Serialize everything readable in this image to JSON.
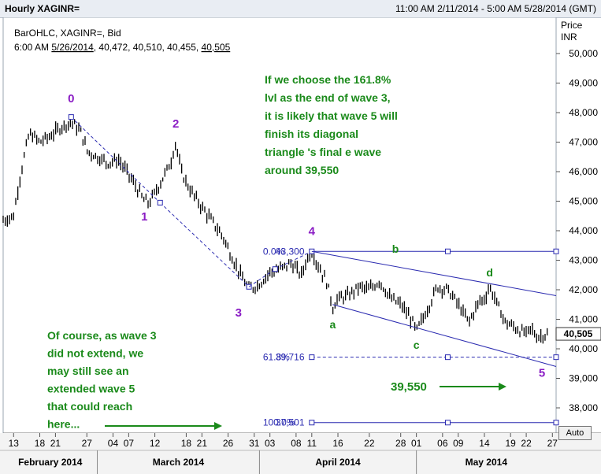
{
  "window": {
    "title": "Hourly XAGINR=",
    "range": "11:00 AM 2/11/2014 - 5:00 AM 5/28/2014 (GMT)"
  },
  "legend": {
    "line1": "BarOHLC, XAGINR=, Bid",
    "time": "6:00 AM",
    "date": "5/26/2014",
    "open": "40,472",
    "high": "40,510",
    "low": "40,455",
    "close": "40,505"
  },
  "axis": {
    "y_title_1": "Price",
    "y_title_2": "INR",
    "auto_label": "Auto",
    "current_price_label": "40,505",
    "current_price": 40505
  },
  "colors": {
    "wave_label": "#8a1cc4",
    "abc_label": "#1a8a1a",
    "annotation_text": "#1a8a1a",
    "fib_line": "#2a2ab0",
    "price_bars": "#000000",
    "underline": "#8a1cc4"
  },
  "annotations": {
    "top": [
      "If we choose the 161.8%",
      "lvl as the end of wave 3,",
      "it is likely that wave 5 will",
      "finish its diagonal",
      "triangle 's final e wave",
      "around 39,550"
    ],
    "bottom": [
      "Of course, as wave 3",
      "did not extend, we",
      "may still see an",
      "extended wave 5",
      "that could reach",
      "here..."
    ],
    "target": "39,550"
  },
  "chart_data": {
    "type": "ohlc",
    "title": "Hourly XAGINR=",
    "ylabel": "Price INR",
    "ylim": [
      36800,
      50500
    ],
    "y_ticks": [
      {
        "v": 50000,
        "label": "50,000"
      },
      {
        "v": 49000,
        "label": "49,000"
      },
      {
        "v": 48000,
        "label": "48,000"
      },
      {
        "v": 47000,
        "label": "47,000"
      },
      {
        "v": 46000,
        "label": "46,000"
      },
      {
        "v": 45000,
        "label": "45,000"
      },
      {
        "v": 44000,
        "label": "44,000"
      },
      {
        "v": 43000,
        "label": "43,000"
      },
      {
        "v": 42000,
        "label": "42,000"
      },
      {
        "v": 41000,
        "label": "41,000"
      },
      {
        "v": 40000,
        "label": "40,000"
      },
      {
        "v": 39000,
        "label": "39,000"
      },
      {
        "v": 38000,
        "label": "38,000"
      }
    ],
    "x_ticks": [
      {
        "date": "2014-02-13",
        "label": "13"
      },
      {
        "date": "2014-02-18",
        "label": "18"
      },
      {
        "date": "2014-02-21",
        "label": "21"
      },
      {
        "date": "2014-02-27",
        "label": "27"
      },
      {
        "date": "2014-03-04",
        "label": "04"
      },
      {
        "date": "2014-03-07",
        "label": "07"
      },
      {
        "date": "2014-03-12",
        "label": "12"
      },
      {
        "date": "2014-03-18",
        "label": "18"
      },
      {
        "date": "2014-03-21",
        "label": "21"
      },
      {
        "date": "2014-03-26",
        "label": "26"
      },
      {
        "date": "2014-03-31",
        "label": "31"
      },
      {
        "date": "2014-04-03",
        "label": "03"
      },
      {
        "date": "2014-04-08",
        "label": "08"
      },
      {
        "date": "2014-04-11",
        "label": "11"
      },
      {
        "date": "2014-04-16",
        "label": "16"
      },
      {
        "date": "2014-04-22",
        "label": "22"
      },
      {
        "date": "2014-04-28",
        "label": "28"
      },
      {
        "date": "2014-05-01",
        "label": "01"
      },
      {
        "date": "2014-05-06",
        "label": "06"
      },
      {
        "date": "2014-05-09",
        "label": "09"
      },
      {
        "date": "2014-05-14",
        "label": "14"
      },
      {
        "date": "2014-05-19",
        "label": "19"
      },
      {
        "date": "2014-05-22",
        "label": "22"
      },
      {
        "date": "2014-05-27",
        "label": "27"
      }
    ],
    "months": [
      {
        "label": "February 2014",
        "start": "2014-02-11",
        "end": "2014-03-01"
      },
      {
        "label": "March 2014",
        "start": "2014-03-01",
        "end": "2014-04-01"
      },
      {
        "label": "April 2014",
        "start": "2014-04-01",
        "end": "2014-05-01"
      },
      {
        "label": "May 2014",
        "start": "2014-05-01",
        "end": "2014-05-28"
      }
    ],
    "price_path": [
      [
        "2014-02-11",
        44350
      ],
      [
        "2014-02-13",
        44500
      ],
      [
        "2014-02-14",
        45600
      ],
      [
        "2014-02-15",
        46500
      ],
      [
        "2014-02-16",
        47300
      ],
      [
        "2014-02-18",
        47000
      ],
      [
        "2014-02-20",
        47200
      ],
      [
        "2014-02-22",
        47500
      ],
      [
        "2014-02-24",
        47700
      ],
      [
        "2014-02-25",
        47500
      ],
      [
        "2014-02-26",
        47300
      ],
      [
        "2014-02-27",
        46700
      ],
      [
        "2014-03-01",
        46500
      ],
      [
        "2014-03-03",
        46300
      ],
      [
        "2014-03-05",
        46400
      ],
      [
        "2014-03-07",
        45900
      ],
      [
        "2014-03-10",
        45000
      ],
      [
        "2014-03-11",
        44950
      ],
      [
        "2014-03-13",
        45600
      ],
      [
        "2014-03-15",
        46300
      ],
      [
        "2014-03-16",
        47000
      ],
      [
        "2014-03-17",
        46000
      ],
      [
        "2014-03-19",
        45300
      ],
      [
        "2014-03-21",
        44800
      ],
      [
        "2014-03-23",
        44300
      ],
      [
        "2014-03-25",
        43800
      ],
      [
        "2014-03-27",
        43000
      ],
      [
        "2014-03-29",
        42300
      ],
      [
        "2014-03-30",
        42000
      ],
      [
        "2014-04-01",
        42200
      ],
      [
        "2014-04-03",
        42600
      ],
      [
        "2014-04-05",
        42700
      ],
      [
        "2014-04-07",
        42900
      ],
      [
        "2014-04-09",
        42500
      ],
      [
        "2014-04-10",
        43000
      ],
      [
        "2014-04-11",
        43300
      ],
      [
        "2014-04-12",
        42900
      ],
      [
        "2014-04-14",
        42200
      ],
      [
        "2014-04-15",
        41400
      ],
      [
        "2014-04-16",
        41700
      ],
      [
        "2014-04-18",
        41800
      ],
      [
        "2014-04-20",
        42100
      ],
      [
        "2014-04-22",
        42000
      ],
      [
        "2014-04-24",
        42300
      ],
      [
        "2014-04-26",
        41700
      ],
      [
        "2014-04-28",
        41500
      ],
      [
        "2014-04-30",
        41000
      ],
      [
        "2014-05-01",
        40600
      ],
      [
        "2014-05-03",
        41300
      ],
      [
        "2014-05-05",
        42100
      ],
      [
        "2014-05-07",
        42000
      ],
      [
        "2014-05-09",
        41500
      ],
      [
        "2014-05-11",
        40900
      ],
      [
        "2014-05-13",
        41600
      ],
      [
        "2014-05-14",
        41700
      ],
      [
        "2014-05-15",
        42100
      ],
      [
        "2014-05-16",
        41700
      ],
      [
        "2014-05-18",
        40900
      ],
      [
        "2014-05-20",
        40700
      ],
      [
        "2014-05-22",
        40500
      ],
      [
        "2014-05-23",
        40700
      ],
      [
        "2014-05-24",
        40400
      ],
      [
        "2014-05-26",
        40505
      ]
    ],
    "wave_labels": [
      {
        "text": "0",
        "date": "2014-02-24",
        "price": 48350
      },
      {
        "text": "1",
        "date": "2014-03-10",
        "price": 44350
      },
      {
        "text": "2",
        "date": "2014-03-16",
        "price": 47500
      },
      {
        "text": "3",
        "date": "2014-03-28",
        "price": 41100
      },
      {
        "text": "4",
        "date": "2014-04-11",
        "price": 43850
      },
      {
        "text": "5",
        "date": "2014-05-25",
        "price": 39050
      }
    ],
    "abc_labels": [
      {
        "text": "a",
        "date": "2014-04-15",
        "price": 40700
      },
      {
        "text": "b",
        "date": "2014-04-27",
        "price": 43250
      },
      {
        "text": "c",
        "date": "2014-05-01",
        "price": 40000
      },
      {
        "text": "d",
        "date": "2014-05-15",
        "price": 42450
      }
    ],
    "wave_path": [
      {
        "date": "2014-02-24",
        "price": 47850
      },
      {
        "date": "2014-03-13",
        "price": 44950
      },
      {
        "date": "2014-03-30",
        "price": 42100
      }
    ],
    "fib_levels": [
      {
        "label": "0.0%",
        "value_label": "43,300",
        "value": 43300,
        "style": "solid"
      },
      {
        "label": "61.8%",
        "value_label": "39,716",
        "value": 39716,
        "style": "dashed"
      },
      {
        "label": "100.0%",
        "value_label": "37,501",
        "value": 37501,
        "style": "solid"
      }
    ],
    "fib_start_date": "2014-04-11",
    "fib_mid_date": "2014-05-07",
    "fib_anchor": {
      "date": "2014-04-04",
      "price": 42700
    },
    "trend_upper": [
      {
        "date": "2014-04-11",
        "price": 43300
      },
      {
        "date": "2014-05-28",
        "price": 41800
      }
    ],
    "trend_lower": [
      {
        "date": "2014-04-15",
        "price": 41500
      },
      {
        "date": "2014-05-28",
        "price": 39400
      }
    ]
  }
}
